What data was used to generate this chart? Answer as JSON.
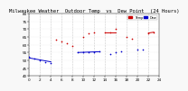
{
  "title": "Milwaukee Weather  Outdoor Temp  vs  Dew Point  (24 Hours)",
  "temp_color": "#cc0000",
  "dew_color": "#0000cc",
  "legend_temp_label": "Temp",
  "legend_dew_label": "Dew",
  "background_color": "#f8f8f8",
  "plot_bg_color": "#ffffff",
  "grid_color": "#bbbbbb",
  "xlim": [
    0,
    24
  ],
  "ylim": [
    40,
    80
  ],
  "temp_x": [
    5,
    6,
    7,
    8,
    10,
    11,
    12,
    14,
    15,
    16,
    18,
    19,
    22,
    23
  ],
  "temp_y": [
    63,
    62,
    61,
    59,
    65,
    67,
    68,
    68,
    68,
    70,
    65,
    64,
    67,
    68
  ],
  "dew_x": [
    0,
    1,
    2,
    3,
    4,
    9,
    10,
    11,
    12,
    13,
    15,
    16,
    17,
    20,
    21
  ],
  "dew_y": [
    52,
    51,
    50,
    49,
    48,
    55,
    55,
    55,
    55,
    56,
    54,
    55,
    56,
    57,
    57
  ],
  "marker_size": 1.5,
  "line_width": 0.7,
  "title_fontsize": 4.0,
  "tick_fontsize": 3.0
}
